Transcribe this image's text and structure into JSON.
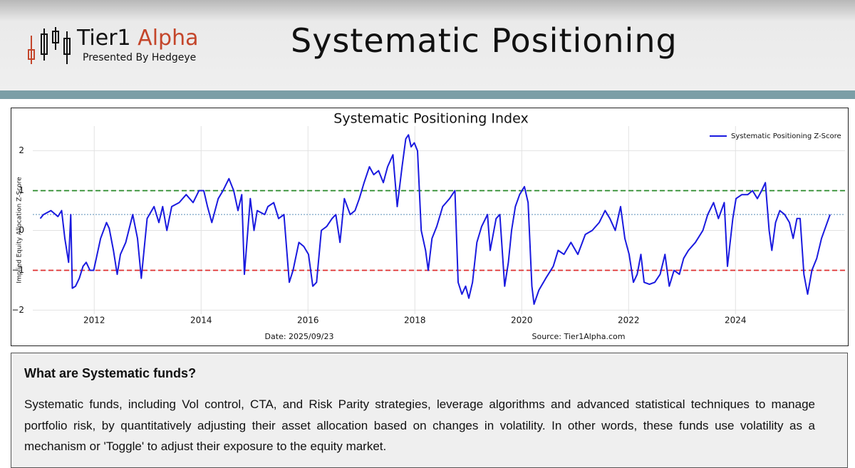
{
  "header": {
    "logo_left": "Tier1",
    "logo_right": "Alpha",
    "tagline": "Presented By Hedgeye",
    "title": "Systematic Positioning"
  },
  "chart_data": {
    "type": "line",
    "title": "Systematic Positioning Index",
    "ylabel": "Implied Equity Allocation Z-Score",
    "x": [
      2010.99,
      2011.05,
      2011.19,
      2011.32,
      2011.39,
      2011.45,
      2011.52,
      2011.56,
      2011.59,
      2011.65,
      2011.72,
      2011.79,
      2011.85,
      2011.92,
      2011.99,
      2012.12,
      2012.23,
      2012.28,
      2012.36,
      2012.43,
      2012.49,
      2012.59,
      2012.72,
      2012.81,
      2012.88,
      2012.99,
      2013.12,
      2013.21,
      2013.28,
      2013.36,
      2013.45,
      2013.59,
      2013.72,
      2013.85,
      2013.96,
      2014.05,
      2014.12,
      2014.2,
      2014.32,
      2014.41,
      2014.52,
      2014.61,
      2014.69,
      2014.76,
      2014.81,
      2014.92,
      2014.99,
      2015.05,
      2015.19,
      2015.25,
      2015.36,
      2015.45,
      2015.55,
      2015.65,
      2015.72,
      2015.83,
      2015.92,
      2016.01,
      2016.09,
      2016.16,
      2016.25,
      2016.35,
      2016.45,
      2016.52,
      2016.6,
      2016.68,
      2016.79,
      2016.88,
      2016.96,
      2017.05,
      2017.15,
      2017.23,
      2017.32,
      2017.41,
      2017.49,
      2017.59,
      2017.67,
      2017.76,
      2017.83,
      2017.88,
      2017.93,
      2017.99,
      2018.05,
      2018.12,
      2018.2,
      2018.25,
      2018.32,
      2018.41,
      2018.52,
      2018.65,
      2018.75,
      2018.81,
      2018.88,
      2018.95,
      2019.01,
      2019.08,
      2019.16,
      2019.25,
      2019.36,
      2019.41,
      2019.52,
      2019.59,
      2019.68,
      2019.75,
      2019.81,
      2019.88,
      2019.96,
      2020.05,
      2020.12,
      2020.19,
      2020.23,
      2020.32,
      2020.45,
      2020.59,
      2020.68,
      2020.79,
      2020.92,
      2021.05,
      2021.19,
      2021.32,
      2021.45,
      2021.56,
      2021.65,
      2021.75,
      2021.85,
      2021.93,
      2022.01,
      2022.09,
      2022.16,
      2022.23,
      2022.29,
      2022.39,
      2022.49,
      2022.59,
      2022.68,
      2022.76,
      2022.85,
      2022.95,
      2023.03,
      2023.12,
      2023.25,
      2023.39,
      2023.48,
      2023.59,
      2023.68,
      2023.79,
      2023.85,
      2023.95,
      2024.01,
      2024.12,
      2024.23,
      2024.32,
      2024.41,
      2024.49,
      2024.56,
      2024.63,
      2024.68,
      2024.75,
      2024.83,
      2024.92,
      2025.01,
      2025.08,
      2025.15,
      2025.21,
      2025.28,
      2025.35,
      2025.43,
      2025.52,
      2025.61,
      2025.69,
      2025.77
    ],
    "series": [
      {
        "name": "Systematic Positioning Z-Score",
        "color": "#1a1adf",
        "values": [
          0.3,
          0.4,
          0.5,
          0.35,
          0.5,
          -0.2,
          -0.8,
          0.4,
          -1.45,
          -1.4,
          -1.2,
          -0.9,
          -0.8,
          -1.0,
          -1.0,
          -0.2,
          0.2,
          0.05,
          -0.5,
          -1.1,
          -0.6,
          -0.3,
          0.4,
          -0.2,
          -1.2,
          0.3,
          0.6,
          0.2,
          0.6,
          0.0,
          0.6,
          0.7,
          0.9,
          0.7,
          1.0,
          1.0,
          0.6,
          0.2,
          0.8,
          1.0,
          1.3,
          1.0,
          0.5,
          0.9,
          -1.1,
          0.8,
          0.0,
          0.5,
          0.4,
          0.6,
          0.7,
          0.3,
          0.4,
          -1.3,
          -1.0,
          -0.3,
          -0.4,
          -0.6,
          -1.4,
          -1.3,
          0.0,
          0.1,
          0.3,
          0.4,
          -0.3,
          0.8,
          0.4,
          0.5,
          0.8,
          1.2,
          1.6,
          1.4,
          1.5,
          1.2,
          1.6,
          1.9,
          0.6,
          1.6,
          2.3,
          2.4,
          2.1,
          2.2,
          2.0,
          0.0,
          -0.5,
          -1.0,
          -0.2,
          0.1,
          0.6,
          0.8,
          1.0,
          -1.3,
          -1.6,
          -1.4,
          -1.7,
          -1.3,
          -0.3,
          0.1,
          0.4,
          -0.5,
          0.3,
          0.4,
          -1.4,
          -0.8,
          0.0,
          0.6,
          0.9,
          1.1,
          0.7,
          -1.4,
          -1.85,
          -1.5,
          -1.2,
          -0.9,
          -0.5,
          -0.6,
          -0.3,
          -0.6,
          -0.1,
          0.0,
          0.2,
          0.5,
          0.3,
          0.0,
          0.6,
          -0.2,
          -0.6,
          -1.3,
          -1.1,
          -0.6,
          -1.3,
          -1.35,
          -1.3,
          -1.1,
          -0.6,
          -1.4,
          -1.0,
          -1.1,
          -0.7,
          -0.5,
          -0.3,
          0.0,
          0.4,
          0.7,
          0.3,
          0.7,
          -0.9,
          0.3,
          0.8,
          0.9,
          0.9,
          1.0,
          0.8,
          1.0,
          1.2,
          0.0,
          -0.5,
          0.2,
          0.5,
          0.4,
          0.2,
          -0.2,
          0.3,
          0.3,
          -1.1,
          -1.6,
          -1.0,
          -0.7,
          -0.2,
          0.1,
          0.4
        ]
      }
    ],
    "reference_lines": [
      {
        "value": 1,
        "color": "#2a8a2a",
        "style": "dashed"
      },
      {
        "value": -1,
        "color": "#e03030",
        "style": "dashed"
      },
      {
        "value": 0.4,
        "color": "#5a8fb8",
        "style": "dotted"
      }
    ],
    "xlim": [
      2010.85,
      2026.05
    ],
    "xticks": [
      2012,
      2014,
      2016,
      2018,
      2020,
      2022,
      2024
    ],
    "ylim": [
      -2.1,
      2.62
    ],
    "yticks": [
      {
        "value": -2,
        "label": "−2"
      },
      {
        "value": -1,
        "label": "−1"
      },
      0,
      1,
      2
    ],
    "grid": true,
    "legend": "upper right",
    "footer_left": "Date: 2025/09/23",
    "footer_right": "Source: Tier1Alpha.com"
  },
  "info": {
    "heading": "What are Systematic funds?",
    "body": "Systematic funds, including Vol control, CTA, and Risk Parity strategies, leverage algorithms and advanced statistical techniques to manage portfolio risk, by quantitatively adjusting their asset allocation based on changes in volatility. In other words, these funds use volatility as a mechanism or 'Toggle' to adjust their exposure to the equity market."
  }
}
